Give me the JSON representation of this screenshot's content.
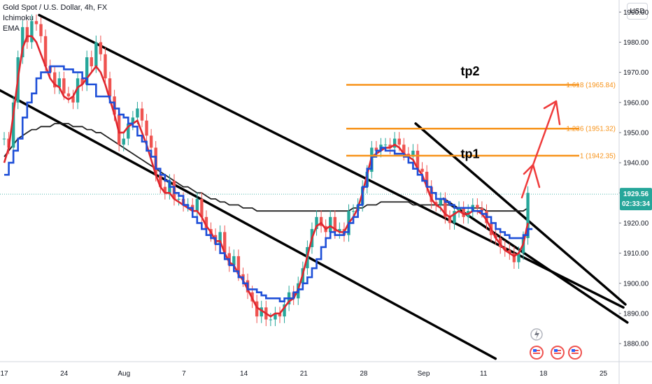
{
  "legend": {
    "symbol": "Gold Spot / U.S. Dollar, 4h, FX",
    "ind1": "Ichimoku",
    "ind2": "EMA"
  },
  "currency": "USD",
  "colors": {
    "up": "#26a69a",
    "down": "#ef5350",
    "fib": "#f7931a",
    "ema": "#1e4fd8",
    "ichimoku": "#e0262e",
    "trend": "#000000",
    "price_tag": "#26a69a",
    "arrow": "#ef3b3b"
  },
  "chart_data": {
    "type": "line",
    "title": "Gold Spot / U.S. Dollar, 4h, FX",
    "ylim": [
      1874,
      1994
    ],
    "y_ticks": [
      1880,
      1890,
      1900,
      1910,
      1920,
      1930,
      1940,
      1950,
      1960,
      1970,
      1980,
      1990
    ],
    "x_tick_labels": [
      {
        "label": "17",
        "i": 0
      },
      {
        "label": "24",
        "i": 30
      },
      {
        "label": "Aug",
        "i": 60
      },
      {
        "label": "7",
        "i": 90
      },
      {
        "label": "14",
        "i": 120
      },
      {
        "label": "21",
        "i": 150
      },
      {
        "label": "28",
        "i": 180
      },
      {
        "label": "Sep",
        "i": 210
      },
      {
        "label": "11",
        "i": 240
      },
      {
        "label": "18",
        "i": 270
      },
      {
        "label": "25",
        "i": 300
      }
    ],
    "candles": {
      "start_i": 0,
      "close": [
        1948,
        1945,
        1960,
        1975,
        1985,
        1980,
        1987,
        1986,
        1982,
        1972,
        1970,
        1965,
        1968,
        1963,
        1962,
        1960,
        1968,
        1966,
        1975,
        1972,
        1980,
        1976,
        1968,
        1962,
        1956,
        1946,
        1948,
        1953,
        1955,
        1958,
        1954,
        1949,
        1945,
        1936,
        1932,
        1930,
        1934,
        1928,
        1928,
        1926,
        1926,
        1924,
        1928,
        1922,
        1918,
        1916,
        1913,
        1917,
        1910,
        1906,
        1909,
        1903,
        1901,
        1897,
        1894,
        1889,
        1892,
        1888,
        1888,
        1890,
        1889,
        1893,
        1897,
        1895,
        1900,
        1905,
        1912,
        1918,
        1922,
        1919,
        1917,
        1922,
        1917,
        1918,
        1916,
        1924,
        1924,
        1926,
        1932,
        1937,
        1945,
        1944,
        1946,
        1946,
        1945,
        1948,
        1946,
        1943,
        1942,
        1944,
        1938,
        1937,
        1932,
        1927,
        1926,
        1928,
        1922,
        1920,
        1924,
        1925,
        1922,
        1924,
        1926,
        1925,
        1924,
        1920,
        1916,
        1915,
        1912,
        1911,
        1910,
        1907,
        1910,
        1915,
        1930
      ]
    },
    "series": [
      {
        "name": "EMA",
        "values": [
          1936,
          1940,
          1944,
          1948,
          1955,
          1960,
          1963,
          1968,
          1970,
          1970,
          1972,
          1972,
          1972,
          1971,
          1971,
          1970,
          1970,
          1968,
          1966,
          1966,
          1962,
          1962,
          1962,
          1960,
          1958,
          1956,
          1955,
          1953,
          1952,
          1949,
          1947,
          1944,
          1942,
          1938,
          1936,
          1934,
          1932,
          1930,
          1929,
          1926,
          1925,
          1922,
          1920,
          1918,
          1916,
          1915,
          1913,
          1910,
          1908,
          1906,
          1904,
          1902,
          1900,
          1898,
          1898,
          1897,
          1896,
          1895,
          1895,
          1895,
          1894,
          1895,
          1895,
          1897,
          1898,
          1900,
          1902,
          1905,
          1908,
          1912,
          1915,
          1917,
          1916,
          1916,
          1917,
          1920,
          1922,
          1926,
          1932,
          1938,
          1942,
          1944,
          1945,
          1944,
          1944,
          1943,
          1943,
          1942,
          1940,
          1938,
          1936,
          1934,
          1932,
          1930,
          1928,
          1928,
          1927,
          1926,
          1925,
          1925,
          1925,
          1925,
          1924,
          1924,
          1923,
          1922,
          1920,
          1918,
          1917,
          1916,
          1915,
          1915,
          1915,
          1916,
          1918
        ]
      },
      {
        "name": "Ichimoku",
        "values": [
          1940,
          1945,
          1956,
          1968,
          1978,
          1982,
          1982,
          1980,
          1976,
          1972,
          1968,
          1966,
          1965,
          1962,
          1961,
          1962,
          1965,
          1966,
          1968,
          1970,
          1972,
          1970,
          1966,
          1961,
          1956,
          1950,
          1950,
          1952,
          1953,
          1954,
          1950,
          1946,
          1941,
          1936,
          1932,
          1930,
          1930,
          1928,
          1927,
          1926,
          1925,
          1924,
          1924,
          1922,
          1919,
          1917,
          1914,
          1914,
          1910,
          1907,
          1906,
          1903,
          1901,
          1898,
          1895,
          1892,
          1891,
          1890,
          1889,
          1890,
          1890,
          1892,
          1894,
          1895,
          1898,
          1903,
          1909,
          1915,
          1919,
          1920,
          1918,
          1919,
          1918,
          1917,
          1917,
          1920,
          1922,
          1925,
          1930,
          1936,
          1942,
          1943,
          1944,
          1945,
          1945,
          1946,
          1945,
          1943,
          1942,
          1941,
          1938,
          1936,
          1932,
          1928,
          1926,
          1925,
          1923,
          1922,
          1923,
          1924,
          1923,
          1923,
          1924,
          1924,
          1923,
          1921,
          1918,
          1915,
          1913,
          1911,
          1910,
          1909,
          1910,
          1913,
          1920
        ]
      },
      {
        "name": "EMA 200",
        "values": [
          1942,
          1944,
          1946,
          1948,
          1949,
          1950,
          1951,
          1951,
          1952,
          1952,
          1952,
          1953,
          1953,
          1953,
          1953,
          1952,
          1952,
          1952,
          1951,
          1951,
          1950,
          1950,
          1949,
          1948,
          1947,
          1946,
          1945,
          1944,
          1943,
          1942,
          1941,
          1940,
          1939,
          1938,
          1937,
          1936,
          1935,
          1934,
          1933,
          1932,
          1932,
          1931,
          1930,
          1930,
          1929,
          1928,
          1928,
          1927,
          1927,
          1926,
          1926,
          1926,
          1925,
          1925,
          1925,
          1924,
          1924,
          1924,
          1924,
          1924,
          1924,
          1924,
          1924,
          1924,
          1924,
          1924,
          1924,
          1924,
          1924,
          1924,
          1924,
          1924,
          1924,
          1924,
          1924,
          1924,
          1925,
          1925,
          1925,
          1926,
          1926,
          1926,
          1927,
          1927,
          1927,
          1927,
          1927,
          1927,
          1927,
          1926,
          1926,
          1926,
          1926,
          1926,
          1926,
          1926,
          1926,
          1926,
          1925,
          1925,
          1925,
          1925,
          1925,
          1925,
          1925,
          1924,
          1924,
          1924,
          1924,
          1924,
          1924,
          1924,
          1924,
          1924,
          1925
        ]
      }
    ],
    "fib_levels": [
      {
        "label": "1 (1942.35)",
        "value": 1942.35
      },
      {
        "label": "1.236 (1951.32)",
        "value": 1951.32
      },
      {
        "label": "1.618 (1965.84)",
        "value": 1965.84
      }
    ],
    "annotations": {
      "tp1": "tp1",
      "tp2": "tp2"
    },
    "current_price": {
      "price": "1929.56",
      "countdown": "02:33:34",
      "value": 1929.56
    },
    "grid": false
  }
}
